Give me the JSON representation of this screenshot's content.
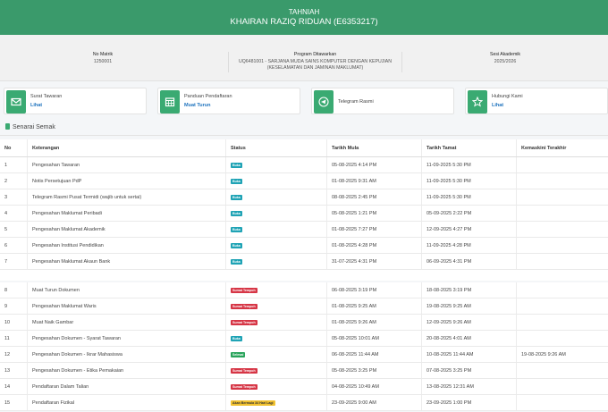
{
  "header": {
    "title": "TAHNIAH",
    "subtitle": "KHAIRAN RAZIQ RIDUAN (E6353217)"
  },
  "info": {
    "matrik_label": "No Matrik",
    "matrik_value": "1250001",
    "program_label": "Program Ditawarkan",
    "program_value_1": "UQ6481001 - SARJANA MUDA SAINS KOMPUTER DENGAN KEPUJIAN",
    "program_value_2": "(KESELAMATAN DAN JAMINAN MAKLUMAT)",
    "sesi_label": "Sesi Akademik",
    "sesi_value": "2025/2026"
  },
  "cards": [
    {
      "title": "Surat Tawaran",
      "link": "Lihat",
      "icon": "envelope-icon"
    },
    {
      "title": "Panduan Pendaftaran",
      "link": "Muat Turun",
      "icon": "calendar-icon"
    },
    {
      "title": "Telegram Rasmi",
      "link": "",
      "icon": "telegram-icon"
    },
    {
      "title": "Hubungi Kami",
      "link": "Lihat",
      "icon": "star-icon"
    }
  ],
  "checklist": {
    "title": "Senarai Semak",
    "headers": [
      "No",
      "Keterangan",
      "Status",
      "Tarikh Mula",
      "Tarikh Tamat",
      "Kemaskini Terakhir"
    ],
    "rows": [
      {
        "no": "1",
        "desc": "Pengesahan Tawaran",
        "status": "Buka",
        "status_color": "#1fa3b5",
        "mula": "05-08-2025 4:14 PM",
        "tamat": "11-09-2025 5:30 PM",
        "kemaskini": ""
      },
      {
        "no": "2",
        "desc": "Notis Persetujuan PdP",
        "status": "Buka",
        "status_color": "#1fa3b5",
        "mula": "01-08-2025 9:31 AM",
        "tamat": "11-09-2025 5:30 PM",
        "kemaskini": ""
      },
      {
        "no": "3",
        "desc": "Telegram Rasmi Pusat Termidi (wajib untuk sertai)",
        "status": "Buka",
        "status_color": "#1fa3b5",
        "mula": "08-08-2025 2:45 PM",
        "tamat": "11-09-2025 5:30 PM",
        "kemaskini": ""
      },
      {
        "no": "4",
        "desc": "Pengesahan Maklumat Peribadi",
        "status": "Buka",
        "status_color": "#1fa3b5",
        "mula": "05-08-2025 1:21 PM",
        "tamat": "05-09-2025 2:22 PM",
        "kemaskini": ""
      },
      {
        "no": "5",
        "desc": "Pengesahan Maklumat Akademik",
        "status": "Buka",
        "status_color": "#1fa3b5",
        "mula": "01-08-2025 7:27 PM",
        "tamat": "12-09-2025 4:27 PM",
        "kemaskini": ""
      },
      {
        "no": "6",
        "desc": "Pengesahan Institusi Pendidikan",
        "status": "Buka",
        "status_color": "#1fa3b5",
        "mula": "01-08-2025 4:28 PM",
        "tamat": "11-09-2025 4:28 PM",
        "kemaskini": ""
      },
      {
        "no": "7",
        "desc": "Pengesahan Maklumat Akaun Bank",
        "status": "Buka",
        "status_color": "#1fa3b5",
        "mula": "31-07-2025 4:31 PM",
        "tamat": "06-09-2025 4:31 PM",
        "kemaskini": ""
      },
      {
        "no": "8",
        "desc": "Muat Turun Dokumen",
        "status": "Sumat Tempoh",
        "status_color": "#d63545",
        "mula": "06-08-2025 3:19 PM",
        "tamat": "18-08-2025 3:19 PM",
        "kemaskini": ""
      },
      {
        "no": "9",
        "desc": "Pengesahan Maklumat Waris",
        "status": "Sumat Tempoh",
        "status_color": "#d63545",
        "mula": "01-08-2025 9:25 AM",
        "tamat": "19-08-2025 9:25 AM",
        "kemaskini": ""
      },
      {
        "no": "10",
        "desc": "Muat Naik Gambar",
        "status": "Sumat Tempoh",
        "status_color": "#d63545",
        "mula": "01-08-2025 9:26 AM",
        "tamat": "12-09-2025 9:26 AM",
        "kemaskini": ""
      },
      {
        "no": "11",
        "desc": "Pengesahan Dokumen - Syarat Tawaran",
        "status": "Buka",
        "status_color": "#1fa3b5",
        "mula": "05-08-2025 10:01 AM",
        "tamat": "20-08-2025 4:01 AM",
        "kemaskini": ""
      },
      {
        "no": "12",
        "desc": "Pengesahan Dokumen - Ikrar Mahasiswa",
        "status": "Selesai",
        "status_color": "#28a35a",
        "mula": "06-08-2025 11:44 AM",
        "tamat": "10-08-2025 11:44 AM",
        "kemaskini": "19-08-2025 9:26 AM"
      },
      {
        "no": "13",
        "desc": "Pengesahan Dokumen - Etika Pemakaian",
        "status": "Sumat Tempoh",
        "status_color": "#d63545",
        "mula": "05-08-2025 3:25 PM",
        "tamat": "07-08-2025 3:25 PM",
        "kemaskini": ""
      },
      {
        "no": "14",
        "desc": "Pendaftaran Dalam Talian",
        "status": "Sumat Tempoh",
        "status_color": "#d63545",
        "mula": "04-08-2025 10:49 AM",
        "tamat": "13-08-2025 12:31 AM",
        "kemaskini": ""
      },
      {
        "no": "15",
        "desc": "Pendaftaran Fizikal",
        "status": "Akan Bermula 34 Hari Lagi",
        "status_color": "#f2c230",
        "mula": "23-09-2025 9:00 AM",
        "tamat": "23-09-2025 1:00 PM",
        "kemaskini": ""
      }
    ]
  }
}
